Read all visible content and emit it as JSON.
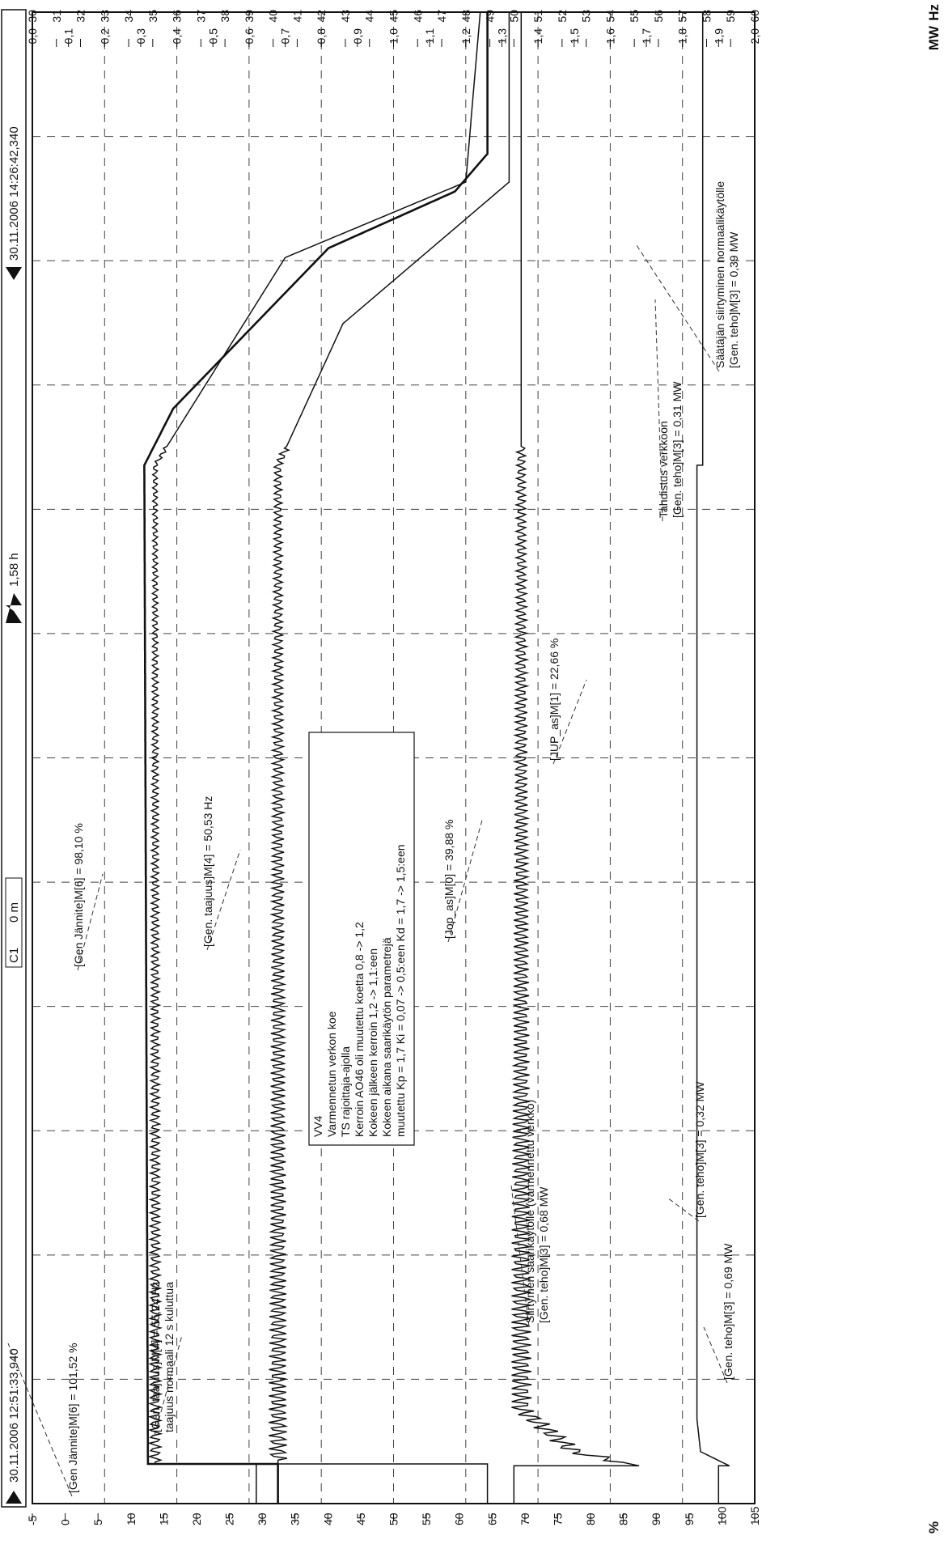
{
  "toolbar": {
    "start_time": "30.11.2006 12:51:33,940",
    "cursor_label": "C1",
    "cursor_value": "0 m",
    "span": "1,58 h",
    "end_time": "30.11.2006 14:26:42,340"
  },
  "axes": {
    "percent": {
      "unit": "%",
      "min": 5,
      "max": 105,
      "step": 5,
      "ticks": [
        "105",
        "100",
        "95",
        "90",
        "85",
        "80",
        "75",
        "70",
        "65",
        "60",
        "55",
        "50",
        "45",
        "40",
        "35",
        "30",
        "25",
        "20",
        "15",
        "10",
        "5",
        "0",
        "-5"
      ]
    },
    "mw": {
      "unit": "MW",
      "min": 0.0,
      "max": 2.0,
      "ticks": [
        "2,0",
        "1,9",
        "1,8",
        "1,7",
        "1,6",
        "1,5",
        "1,4",
        "1,3",
        "1,2",
        "1,1",
        "1,0",
        "0,9",
        "0,8",
        "0,7",
        "0,6",
        "0,5",
        "0,4",
        "0,3",
        "0,2",
        "0,1",
        "0,0"
      ]
    },
    "hz": {
      "unit": "Hz",
      "min": 30,
      "max": 60,
      "ticks": [
        "60",
        "59",
        "58",
        "57",
        "56",
        "55",
        "54",
        "53",
        "52",
        "51",
        "50",
        "49",
        "48",
        "47",
        "46",
        "45",
        "44",
        "43",
        "42",
        "41",
        "40",
        "39",
        "38",
        "37",
        "36",
        "35",
        "34",
        "33",
        "32",
        "31",
        "30"
      ]
    }
  },
  "annotations": [
    {
      "id": "gen-jannite-1",
      "lines": [
        "[Gen Jännite]M[6] = 101,52 %"
      ]
    },
    {
      "id": "gen-jannite-2",
      "lines": [
        "[Gen Jännite]M[6] = 98,10 %"
      ]
    },
    {
      "id": "gen-taajuus-1",
      "lines": [
        "[Gen. taajuus]M[4] = 55,24 Hz",
        "taajuus normaali 12 s kuluttua"
      ]
    },
    {
      "id": "gen-taajuus-2",
      "lines": [
        "[Gen. taajuus]M[4] = 50,53 Hz"
      ]
    },
    {
      "id": "jop-as",
      "lines": [
        "[Jop_as]M[0] = 39,88 %"
      ]
    },
    {
      "id": "jup-as",
      "lines": [
        "[JUP_as]M[1] = 22,66 %"
      ]
    },
    {
      "id": "siirtymen",
      "lines": [
        "Siirtymen saarikäytölle (varmennettu verkko)",
        "[Gen. teho]M[3] = 0,68 MW"
      ]
    },
    {
      "id": "gen-teho-032",
      "lines": [
        "[Gen. teho]M[3] = 0,32 MW"
      ]
    },
    {
      "id": "gen-teho-069",
      "lines": [
        "[Gen. teho]M[3] = 0,69 MW"
      ]
    },
    {
      "id": "tahdistus",
      "lines": [
        "Tahdistus verkkoon",
        "[Gen. teho]M[3] = 0,31 MW"
      ]
    },
    {
      "id": "saatajan",
      "lines": [
        "Säätäjän siirtyminen normaalikäytölle",
        "[Gen. teho]M[3] = 0,39 MW"
      ]
    }
  ],
  "info_box": {
    "lines": [
      "VV4",
      "Varmennetun verkon koe",
      "TS rajoittaja-ajolla",
      "Kerroin AO46 oli muutettu koetta 0,8 -> 1,2",
      "Kokeen jälkeen kerroin 1,2 -> 1,1:een",
      "Kokeen aikana saarikäytön parametrejä",
      "muutettu Kp = 1,7 Ki = 0,07 -> 0,5:een Kd = 1,7 -> 1,5:een"
    ]
  },
  "chart_data": {
    "type": "line",
    "x_unit": "h",
    "x_range": [
      0,
      1.58
    ],
    "series": [
      {
        "label": "[Gen Jännite]M[6]",
        "axis": "percent",
        "points": [
          [
            0.0,
            100
          ],
          [
            0.04,
            100
          ],
          [
            0.04,
            101.5
          ],
          [
            0.055,
            97.5
          ],
          [
            0.09,
            97
          ],
          [
            1.1,
            97
          ],
          [
            1.1,
            97.8
          ],
          [
            1.58,
            97.8
          ]
        ]
      },
      {
        "label": "[Gen. taajuus]M[4]",
        "axis": "hz",
        "points": [
          [
            0.0,
            50
          ],
          [
            0.04,
            50
          ],
          [
            0.04,
            55.2
          ],
          [
            0.055,
            52.5
          ],
          [
            0.1,
            50.3
          ],
          [
            1.58,
            50.3
          ]
        ],
        "osc_amp": 0.45
      },
      {
        "label": "[Jop_as]M[0]",
        "axis": "percent",
        "points": [
          [
            0.0,
            68
          ],
          [
            0.042,
            68
          ],
          [
            0.042,
            39
          ],
          [
            1.1,
            39
          ],
          [
            1.25,
            48
          ],
          [
            1.4,
            71
          ],
          [
            1.58,
            71
          ]
        ],
        "osc_amp": 1.3
      },
      {
        "label": "[JUP_as]M[1]",
        "axis": "percent",
        "points": [
          [
            0.0,
            36
          ],
          [
            0.042,
            36
          ],
          [
            0.042,
            22
          ],
          [
            1.1,
            22
          ],
          [
            1.32,
            40
          ],
          [
            1.4,
            65
          ],
          [
            1.58,
            67
          ]
        ],
        "osc_amp": 0.8
      },
      {
        "label": "[Gen. teho]M[3]",
        "axis": "mw",
        "points": [
          [
            0.0,
            0.68
          ],
          [
            0.042,
            0.68
          ],
          [
            0.042,
            0.32
          ],
          [
            1.1,
            0.31
          ],
          [
            1.16,
            0.39
          ],
          [
            1.33,
            0.82
          ],
          [
            1.39,
            1.17
          ],
          [
            1.43,
            1.26
          ],
          [
            1.58,
            1.26
          ]
        ]
      }
    ]
  }
}
